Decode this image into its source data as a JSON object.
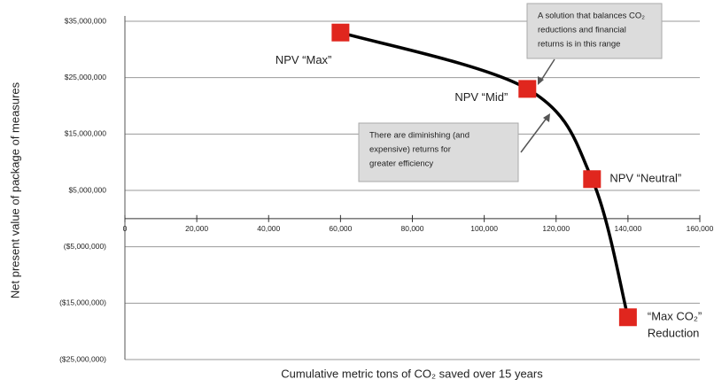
{
  "chart_data": {
    "type": "line",
    "y_label": "Net present value of package of measures",
    "x_label": "Cumulative metric tons of CO₂ saved over 15 years",
    "x": [
      60000,
      112000,
      130000,
      140000
    ],
    "series": [
      {
        "color": "#000000",
        "marker_color": "#e0261e",
        "values": [
          33000000,
          23000000,
          7000000,
          -17500000
        ]
      }
    ],
    "point_labels": [
      [
        "NPV “Max”"
      ],
      [
        "NPV “Mid”"
      ],
      [
        "NPV “Neutral”"
      ],
      [
        "“Max CO₂”",
        "Reduction"
      ]
    ],
    "xlim": [
      0,
      160000
    ],
    "xticks": [
      0,
      {
        "value": 20000,
        "label": "20,000"
      },
      {
        "value": 40000,
        "label": "40,000"
      },
      {
        "value": 60000,
        "label": "60,000"
      },
      {
        "value": 80000,
        "label": "80,000"
      },
      {
        "value": 100000,
        "label": "100,000"
      },
      {
        "value": 120000,
        "label": "120,000"
      },
      {
        "value": 140000,
        "label": "140,000"
      },
      {
        "value": 160000,
        "label": "160,000"
      }
    ],
    "ylim": [
      -25000000,
      35000000
    ],
    "yticks": [
      {
        "value": 35000000,
        "label": "$35,000,000"
      },
      {
        "value": 25000000,
        "label": "$25,000,000"
      },
      {
        "value": 15000000,
        "label": "$15,000,000"
      },
      {
        "value": 5000000,
        "label": "$5,000,000"
      },
      {
        "value": -5000000,
        "label": "($5,000,000)"
      },
      {
        "value": -15000000,
        "label": "($15,000,000)"
      },
      {
        "value": -25000000,
        "label": "($25,000,000)"
      }
    ],
    "negative_tick_color": "#c0272d",
    "grid": true,
    "annotations": [
      {
        "lines": [
          "A solution that balances CO₂",
          "reductions and financial",
          "returns is in this range"
        ]
      },
      {
        "lines": [
          "There are diminishing (and",
          "expensive) returns for",
          "greater efficiency"
        ]
      }
    ]
  }
}
